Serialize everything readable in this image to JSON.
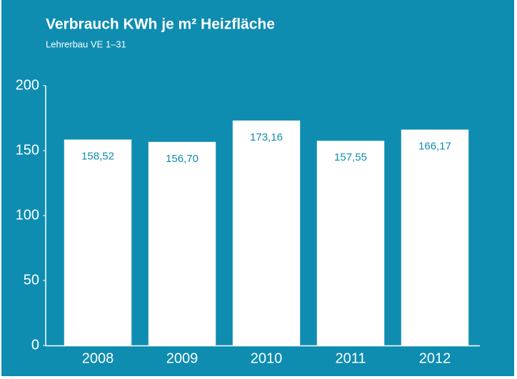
{
  "chart_data": {
    "type": "bar",
    "title": "Verbrauch KWh je m² Heizfläche",
    "subtitle": "Lehrerbau VE 1–31",
    "categories": [
      "2008",
      "2009",
      "2010",
      "2011",
      "2012"
    ],
    "values": [
      158.52,
      156.7,
      173.16,
      157.55,
      166.17
    ],
    "value_labels": [
      "158,52",
      "156,70",
      "173,16",
      "157,55",
      "166,17"
    ],
    "color": "#ffffff",
    "background": "#0e8db1",
    "ylim": [
      0,
      200
    ],
    "yticks": [
      0,
      50,
      100,
      150,
      200
    ],
    "grid": false
  }
}
